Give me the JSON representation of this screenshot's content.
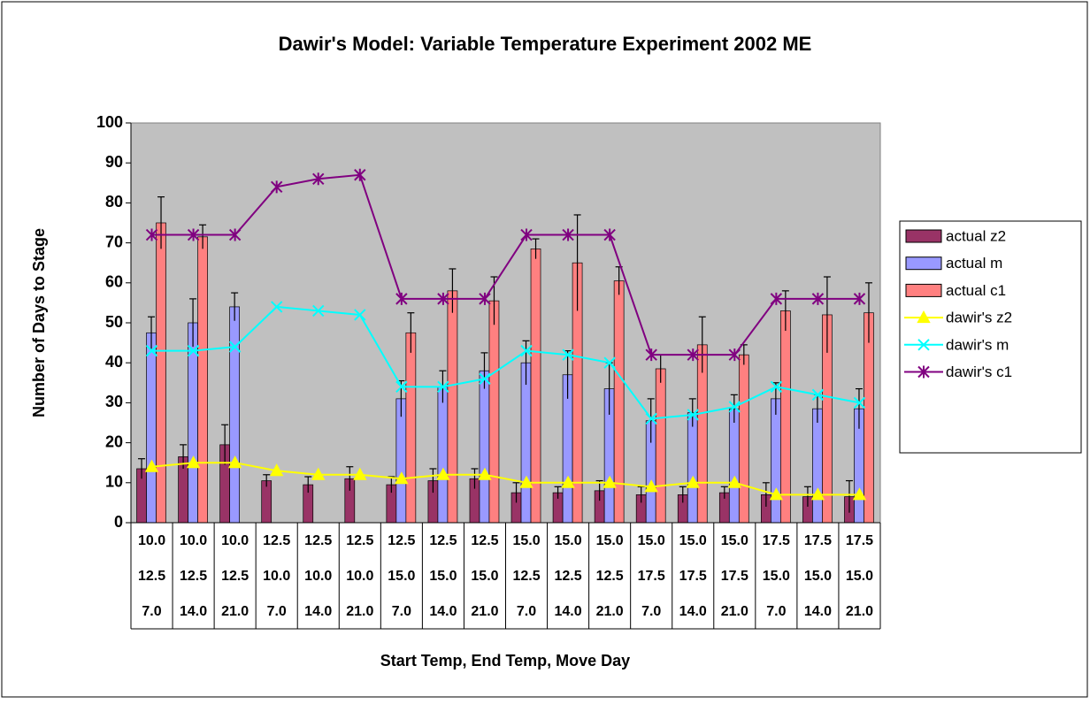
{
  "chart_data": {
    "type": "bar",
    "title": "Dawir's Model: Variable Temperature Experiment 2002 ME",
    "x_label": "Start Temp, End Temp, Move Day",
    "y_label": "Number of Days to Stage",
    "categories": [
      [
        "10.0",
        "12.5",
        "7.0"
      ],
      [
        "10.0",
        "12.5",
        "14.0"
      ],
      [
        "10.0",
        "12.5",
        "21.0"
      ],
      [
        "12.5",
        "10.0",
        "7.0"
      ],
      [
        "12.5",
        "10.0",
        "14.0"
      ],
      [
        "12.5",
        "10.0",
        "21.0"
      ],
      [
        "12.5",
        "15.0",
        "7.0"
      ],
      [
        "12.5",
        "15.0",
        "14.0"
      ],
      [
        "12.5",
        "15.0",
        "21.0"
      ],
      [
        "15.0",
        "12.5",
        "7.0"
      ],
      [
        "15.0",
        "12.5",
        "14.0"
      ],
      [
        "15.0",
        "12.5",
        "21.0"
      ],
      [
        "15.0",
        "17.5",
        "7.0"
      ],
      [
        "15.0",
        "17.5",
        "14.0"
      ],
      [
        "15.0",
        "17.5",
        "21.0"
      ],
      [
        "17.5",
        "15.0",
        "7.0"
      ],
      [
        "17.5",
        "15.0",
        "14.0"
      ],
      [
        "17.5",
        "15.0",
        "21.0"
      ]
    ],
    "series": [
      {
        "name": "actual z2",
        "kind": "bar",
        "color": "#993366",
        "values": [
          13.5,
          16.5,
          19.5,
          10.5,
          9.5,
          11,
          9.5,
          10.5,
          11,
          7.5,
          7.5,
          8,
          7,
          7,
          7.5,
          7,
          6.5,
          6.5
        ],
        "errors": [
          2.5,
          3,
          5,
          1.5,
          2,
          3,
          2,
          3,
          2.5,
          2.5,
          1.5,
          2.5,
          2,
          2,
          1.5,
          3,
          2.5,
          4
        ]
      },
      {
        "name": "actual m",
        "kind": "bar",
        "color": "#9999ff",
        "values": [
          47.5,
          50,
          54,
          null,
          null,
          null,
          31,
          34,
          38,
          40,
          37,
          33.5,
          25.5,
          27.5,
          28.5,
          31,
          28.5,
          28.5
        ],
        "errors": [
          4,
          6,
          3.5,
          null,
          null,
          null,
          4.5,
          4,
          4.5,
          5.5,
          6,
          6.5,
          5.5,
          3.5,
          3.5,
          4,
          3.5,
          5
        ]
      },
      {
        "name": "actual c1",
        "kind": "bar",
        "color": "#ff8080",
        "values": [
          75,
          71.5,
          null,
          null,
          null,
          null,
          47.5,
          58,
          55.5,
          68.5,
          65,
          60.5,
          38.5,
          44.5,
          42,
          53,
          52,
          52.5
        ],
        "errors": [
          6.5,
          3,
          null,
          null,
          null,
          null,
          5,
          5.5,
          6,
          2.5,
          12,
          3.5,
          3.5,
          7,
          2.5,
          5,
          9.5,
          7.5
        ]
      },
      {
        "name": "dawir's z2",
        "kind": "line",
        "marker": "triangle",
        "color": "#ffff00",
        "values": [
          14,
          15,
          15,
          13,
          12,
          12,
          11,
          12,
          12,
          10,
          10,
          10,
          9,
          10,
          10,
          7,
          7,
          7
        ]
      },
      {
        "name": "dawir's m",
        "kind": "line",
        "marker": "x",
        "color": "#00ffff",
        "values": [
          43,
          43,
          44,
          54,
          53,
          52,
          34,
          34,
          36,
          43,
          42,
          40,
          26,
          27,
          29,
          34,
          32,
          30
        ]
      },
      {
        "name": "dawir's c1",
        "kind": "line",
        "marker": "star",
        "color": "#800080",
        "values": [
          72,
          72,
          72,
          84,
          86,
          87,
          56,
          56,
          56,
          72,
          72,
          72,
          42,
          42,
          42,
          56,
          56,
          56
        ]
      }
    ],
    "ylim": [
      0,
      100
    ],
    "yticks": [
      0,
      10,
      20,
      30,
      40,
      50,
      60,
      70,
      80,
      90,
      100
    ],
    "plot_background": "#c0c0c0",
    "legend": "right"
  }
}
